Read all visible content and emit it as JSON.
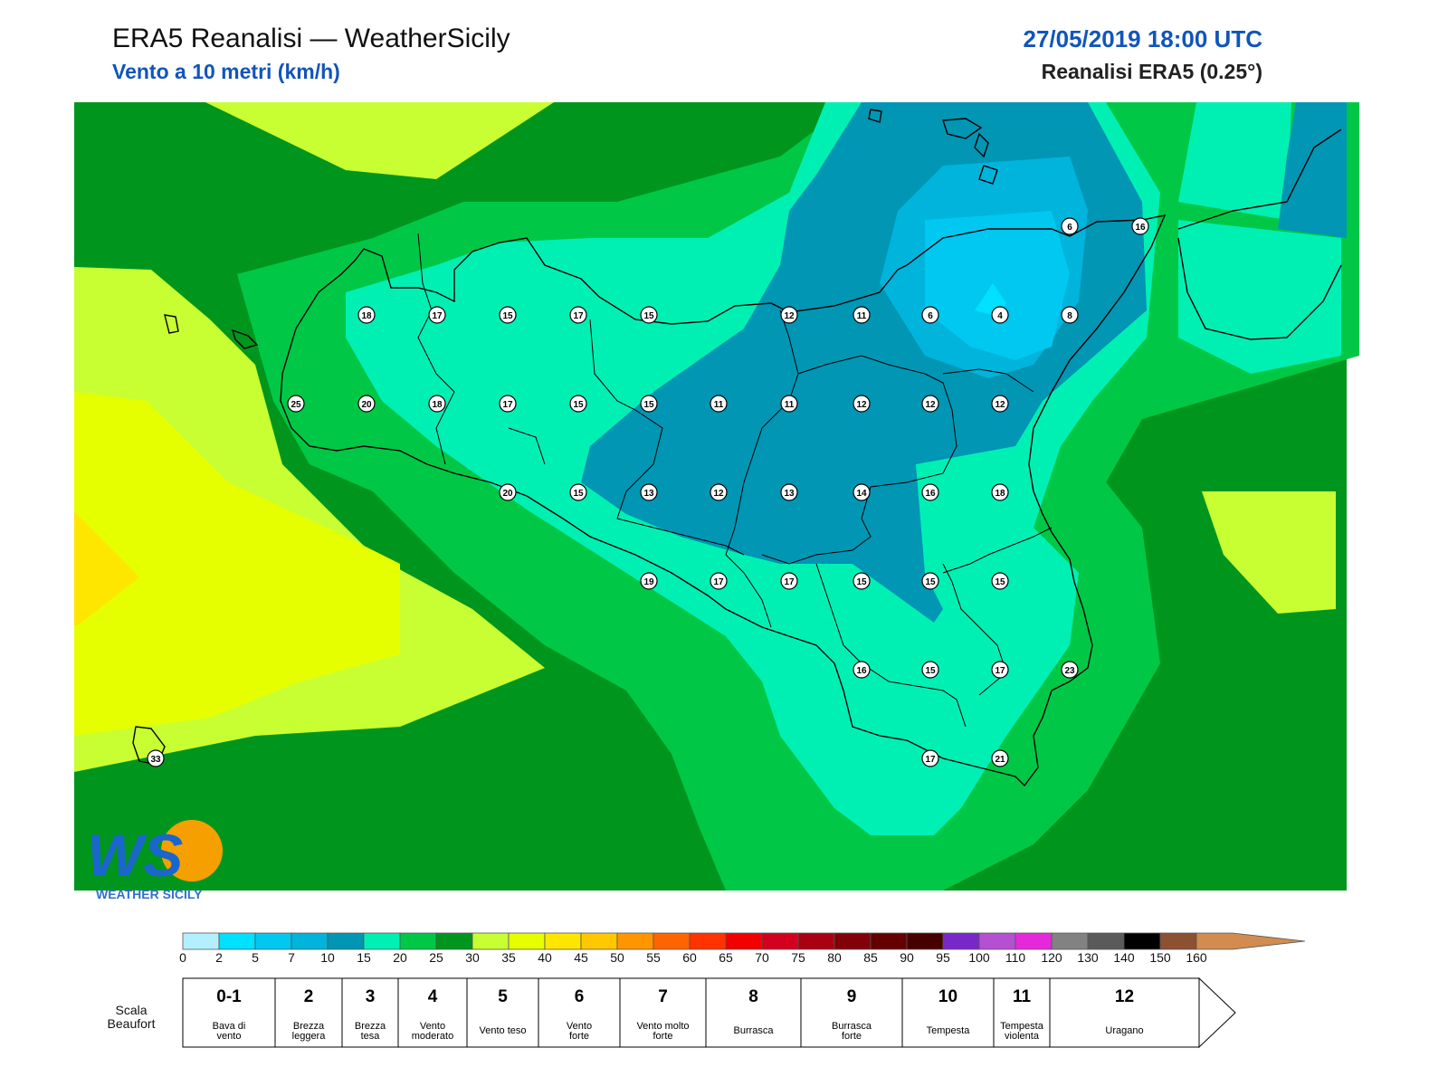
{
  "header": {
    "title": "ERA5 Reanalisi — WeatherSicily",
    "subtitle": "Vento a 10 metri (km/h)",
    "date": "27/05/2019 18:00 UTC",
    "model": "Reanalisi ERA5 (0.25°)"
  },
  "logo": {
    "big": "WS",
    "small": "WEATHER SICILY"
  },
  "station_values": [
    [
      18,
      17,
      15,
      17,
      15,
      12,
      11,
      6,
      4,
      8
    ],
    [
      25,
      20,
      18,
      17,
      15,
      15,
      11,
      11,
      12,
      12,
      12
    ],
    [
      20,
      15,
      13,
      12,
      13,
      14,
      16,
      18
    ],
    [
      19,
      17,
      17,
      15,
      15,
      15
    ],
    [
      16,
      15,
      17,
      23
    ],
    [
      17,
      21
    ],
    [
      6,
      16,
      33
    ]
  ],
  "colorbar": {
    "ticks": [
      "0",
      "2",
      "5",
      "7",
      "10",
      "15",
      "20",
      "25",
      "30",
      "35",
      "40",
      "45",
      "50",
      "55",
      "60",
      "65",
      "70",
      "75",
      "80",
      "85",
      "90",
      "95",
      "100",
      "110",
      "120",
      "130",
      "140",
      "150",
      "160"
    ],
    "colors": [
      "#b3f0ff",
      "#00e0ff",
      "#00c8f0",
      "#00b4dc",
      "#0096b4",
      "#00f0b4",
      "#00c846",
      "#00961e",
      "#c8ff32",
      "#e6ff00",
      "#ffe600",
      "#ffc800",
      "#ff9600",
      "#ff6400",
      "#ff3200",
      "#f00000",
      "#d2001e",
      "#aa0014",
      "#82000a",
      "#640000",
      "#460000",
      "#7828c8",
      "#b450d2",
      "#e628dc",
      "#828282",
      "#5a5a5a",
      "#000000",
      "#8c5032",
      "#d28c50"
    ]
  },
  "beaufort": {
    "label": "Scala\nBeaufort",
    "classes": [
      {
        "num": "0-1",
        "name": "Bava di\nvento"
      },
      {
        "num": "2",
        "name": "Brezza\nleggera"
      },
      {
        "num": "3",
        "name": "Brezza\ntesa"
      },
      {
        "num": "4",
        "name": "Vento\nmoderato"
      },
      {
        "num": "5",
        "name": "Vento teso"
      },
      {
        "num": "6",
        "name": "Vento\nforte"
      },
      {
        "num": "7",
        "name": "Vento molto\nforte"
      },
      {
        "num": "8",
        "name": "Burrasca"
      },
      {
        "num": "9",
        "name": "Burrasca\nforte"
      },
      {
        "num": "10",
        "name": "Tempesta"
      },
      {
        "num": "11",
        "name": "Tempesta\nviolenta"
      },
      {
        "num": "12",
        "name": "Uragano"
      }
    ]
  }
}
